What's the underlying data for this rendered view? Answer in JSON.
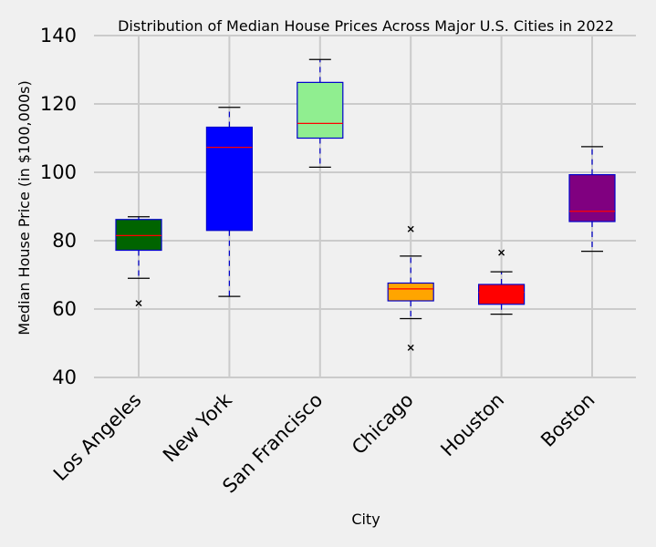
{
  "chart_data": {
    "type": "box",
    "title": "Distribution of Median House Prices Across Major U.S. Cities in 2022",
    "xlabel": "City",
    "ylabel": "Median House Price (in $100,000s)",
    "ylim": [
      40,
      140
    ],
    "yticks": [
      40,
      60,
      80,
      100,
      120,
      140
    ],
    "grid": true,
    "categories": [
      "Los Angeles",
      "New York",
      "San Francisco",
      "Chicago",
      "Houston",
      "Boston"
    ],
    "boxes": [
      {
        "whisker_low": 69,
        "q1": 77.2,
        "median": 81.5,
        "q3": 86.2,
        "whisker_high": 87,
        "outliers": [
          61.7
        ],
        "color": "#006400"
      },
      {
        "whisker_low": 63.7,
        "q1": 83,
        "median": 107.3,
        "q3": 113.2,
        "whisker_high": 119,
        "outliers": [],
        "color": "#0000ff"
      },
      {
        "whisker_low": 101.5,
        "q1": 110,
        "median": 114.3,
        "q3": 126.3,
        "whisker_high": 133,
        "outliers": [],
        "color": "#90ee90"
      },
      {
        "whisker_low": 57.2,
        "q1": 62.4,
        "median": 65.9,
        "q3": 67.6,
        "whisker_high": 75.5,
        "outliers": [
          83.4,
          48.7
        ],
        "color": "#ffa500"
      },
      {
        "whisker_low": 58.5,
        "q1": 61.4,
        "median": 64.9,
        "q3": 67.2,
        "whisker_high": 70.9,
        "outliers": [
          76.5
        ],
        "color": "#ff0000"
      },
      {
        "whisker_low": 76.9,
        "q1": 85.6,
        "median": 88.6,
        "q3": 99.3,
        "whisker_high": 107.5,
        "outliers": [],
        "color": "#800080"
      }
    ]
  }
}
